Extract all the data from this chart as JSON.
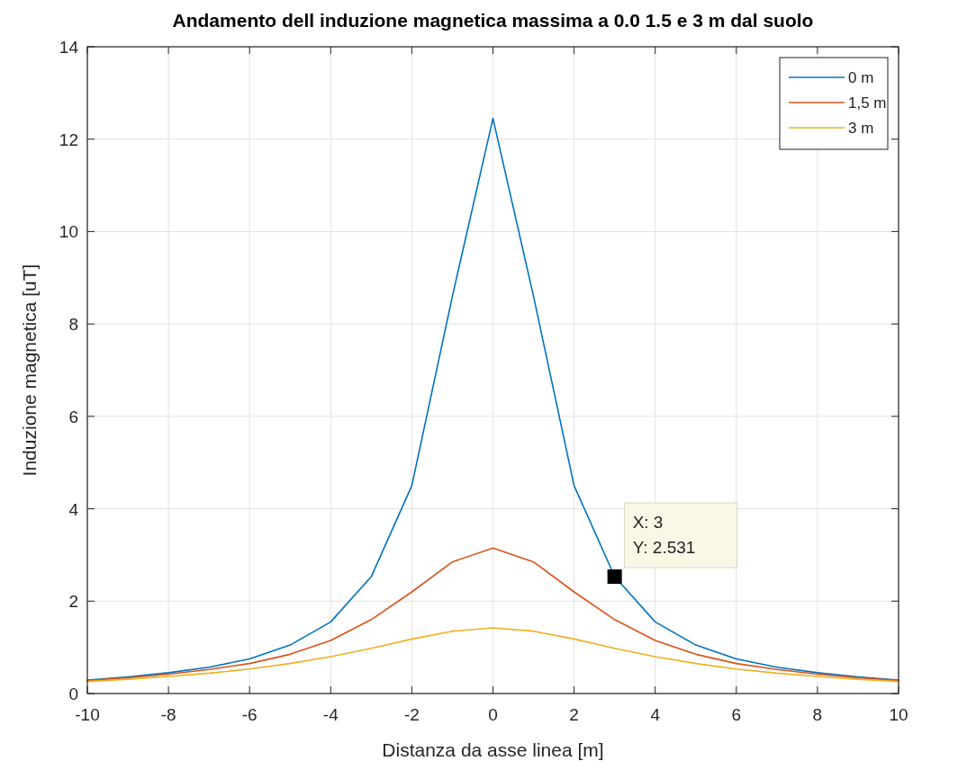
{
  "chart_data": {
    "type": "line",
    "title": "Andamento dell induzione magnetica massima a 0.0 1.5 e 3 m dal suolo",
    "xlabel": "Distanza da asse linea [m]",
    "ylabel": "Induzione magnetica [uT]",
    "x": [
      -10,
      -9,
      -8,
      -7,
      -6,
      -5,
      -4,
      -3,
      -2,
      -1,
      0,
      1,
      2,
      3,
      4,
      5,
      6,
      7,
      8,
      9,
      10
    ],
    "series": [
      {
        "name": "0 m",
        "color": "#0072bd",
        "values": [
          0.29,
          0.36,
          0.45,
          0.57,
          0.75,
          1.05,
          1.55,
          2.53,
          4.5,
          8.6,
          12.45,
          8.6,
          4.5,
          2.531,
          1.55,
          1.05,
          0.75,
          0.57,
          0.45,
          0.36,
          0.29
        ]
      },
      {
        "name": "1,5 m",
        "color": "#d95319",
        "values": [
          0.28,
          0.34,
          0.42,
          0.52,
          0.65,
          0.85,
          1.15,
          1.6,
          2.2,
          2.85,
          3.15,
          2.85,
          2.2,
          1.6,
          1.15,
          0.85,
          0.65,
          0.52,
          0.42,
          0.34,
          0.28
        ]
      },
      {
        "name": "3 m",
        "color": "#edb120",
        "values": [
          0.26,
          0.31,
          0.37,
          0.44,
          0.53,
          0.65,
          0.8,
          0.98,
          1.18,
          1.35,
          1.42,
          1.35,
          1.18,
          0.98,
          0.8,
          0.65,
          0.53,
          0.44,
          0.37,
          0.31,
          0.26
        ]
      }
    ],
    "annotations": [
      {
        "text": "X: 3\nY: 2.531",
        "x": 3,
        "y": 2.531
      }
    ],
    "xlim": [
      -10,
      10
    ],
    "xticks": [
      -10,
      -8,
      -6,
      -4,
      -2,
      0,
      2,
      4,
      6,
      8,
      10
    ],
    "ylim": [
      0,
      14
    ],
    "yticks": [
      0,
      2,
      4,
      6,
      8,
      10,
      12,
      14
    ],
    "grid": true,
    "legend": "top right",
    "marker": "none",
    "line_style": "solid"
  }
}
